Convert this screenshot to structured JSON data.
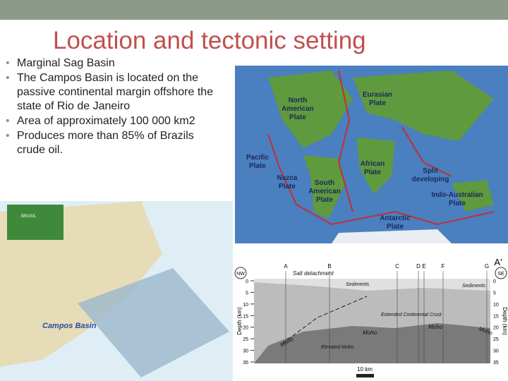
{
  "slide": {
    "title": "Location and tectonic setting",
    "bullets": [
      "Marginal Sag Basin",
      "The Campos Basin is located on the passive continental margin offshore the state of Rio de Janeiro",
      "Area of approximately 100 000 km2",
      "Produces more than 85% of Brazils crude oil."
    ]
  },
  "plate_map": {
    "labels": [
      "North American Plate",
      "Eurasian Plate",
      "Pacific Plate",
      "African Plate",
      "Split developing",
      "Nazca Plate",
      "South American Plate",
      "Indo-Australian Plate",
      "Antarctic Plate"
    ]
  },
  "location_map": {
    "labels": [
      "BRASIL",
      "Campos Basin"
    ]
  },
  "cross_section": {
    "points": [
      "A",
      "B",
      "C",
      "D",
      "E",
      "F",
      "G",
      "A'"
    ],
    "directions": [
      "NW",
      "SE"
    ],
    "labels": [
      "Salt detachment",
      "Sediments",
      "Sediments",
      "Extended Continental Crust",
      "Moho",
      "Moho",
      "Moho",
      "Moho",
      "Elevated Moho"
    ],
    "axis_title": "Depth (km)",
    "depth_ticks": [
      0,
      5,
      10,
      15,
      20,
      25,
      30,
      35
    ],
    "scale_bar": "10 km"
  }
}
